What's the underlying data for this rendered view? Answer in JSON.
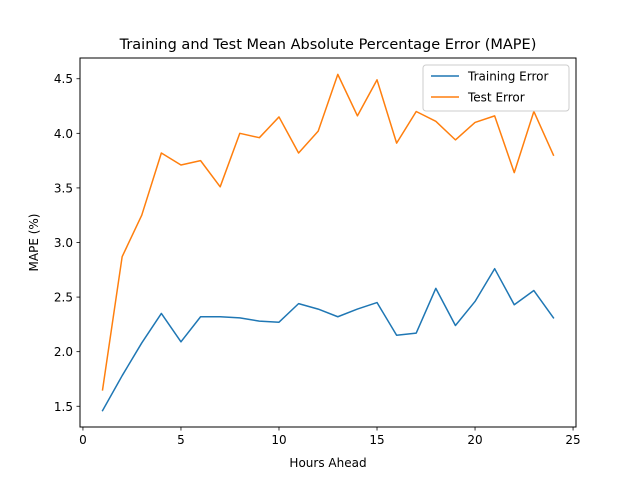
{
  "chart_data": {
    "type": "line",
    "title": "Training and Test Mean Absolute Percentage Error (MAPE)",
    "xlabel": "Hours Ahead",
    "ylabel": "MAPE (%)",
    "xlim": [
      -0.15,
      25.15
    ],
    "ylim": [
      1.31,
      4.69
    ],
    "xticks": [
      0,
      5,
      10,
      15,
      20,
      25
    ],
    "xtick_labels": [
      "0",
      "5",
      "10",
      "15",
      "20",
      "25"
    ],
    "yticks": [
      1.5,
      2.0,
      2.5,
      3.0,
      3.5,
      4.0,
      4.5
    ],
    "ytick_labels": [
      "1.5",
      "2.0",
      "2.5",
      "3.0",
      "3.5",
      "4.0",
      "4.5"
    ],
    "grid": false,
    "legend_position": "top-right",
    "x": [
      1,
      2,
      3,
      4,
      5,
      6,
      7,
      8,
      9,
      10,
      11,
      12,
      13,
      14,
      15,
      16,
      17,
      18,
      19,
      20,
      21,
      22,
      23,
      24
    ],
    "series": [
      {
        "name": "Training Error",
        "color": "#1f77b4",
        "values": [
          1.46,
          1.78,
          2.08,
          2.35,
          2.09,
          2.32,
          2.32,
          2.31,
          2.28,
          2.27,
          2.44,
          2.39,
          2.32,
          2.39,
          2.45,
          2.15,
          2.17,
          2.58,
          2.24,
          2.46,
          2.76,
          2.43,
          2.56,
          2.31
        ]
      },
      {
        "name": "Test Error",
        "color": "#ff7f0e",
        "values": [
          1.65,
          2.87,
          3.25,
          3.82,
          3.71,
          3.75,
          3.51,
          4.0,
          3.96,
          4.15,
          3.82,
          4.02,
          4.54,
          4.16,
          4.49,
          3.91,
          4.2,
          4.11,
          3.94,
          4.1,
          4.16,
          3.64,
          4.2,
          3.8
        ]
      }
    ]
  }
}
